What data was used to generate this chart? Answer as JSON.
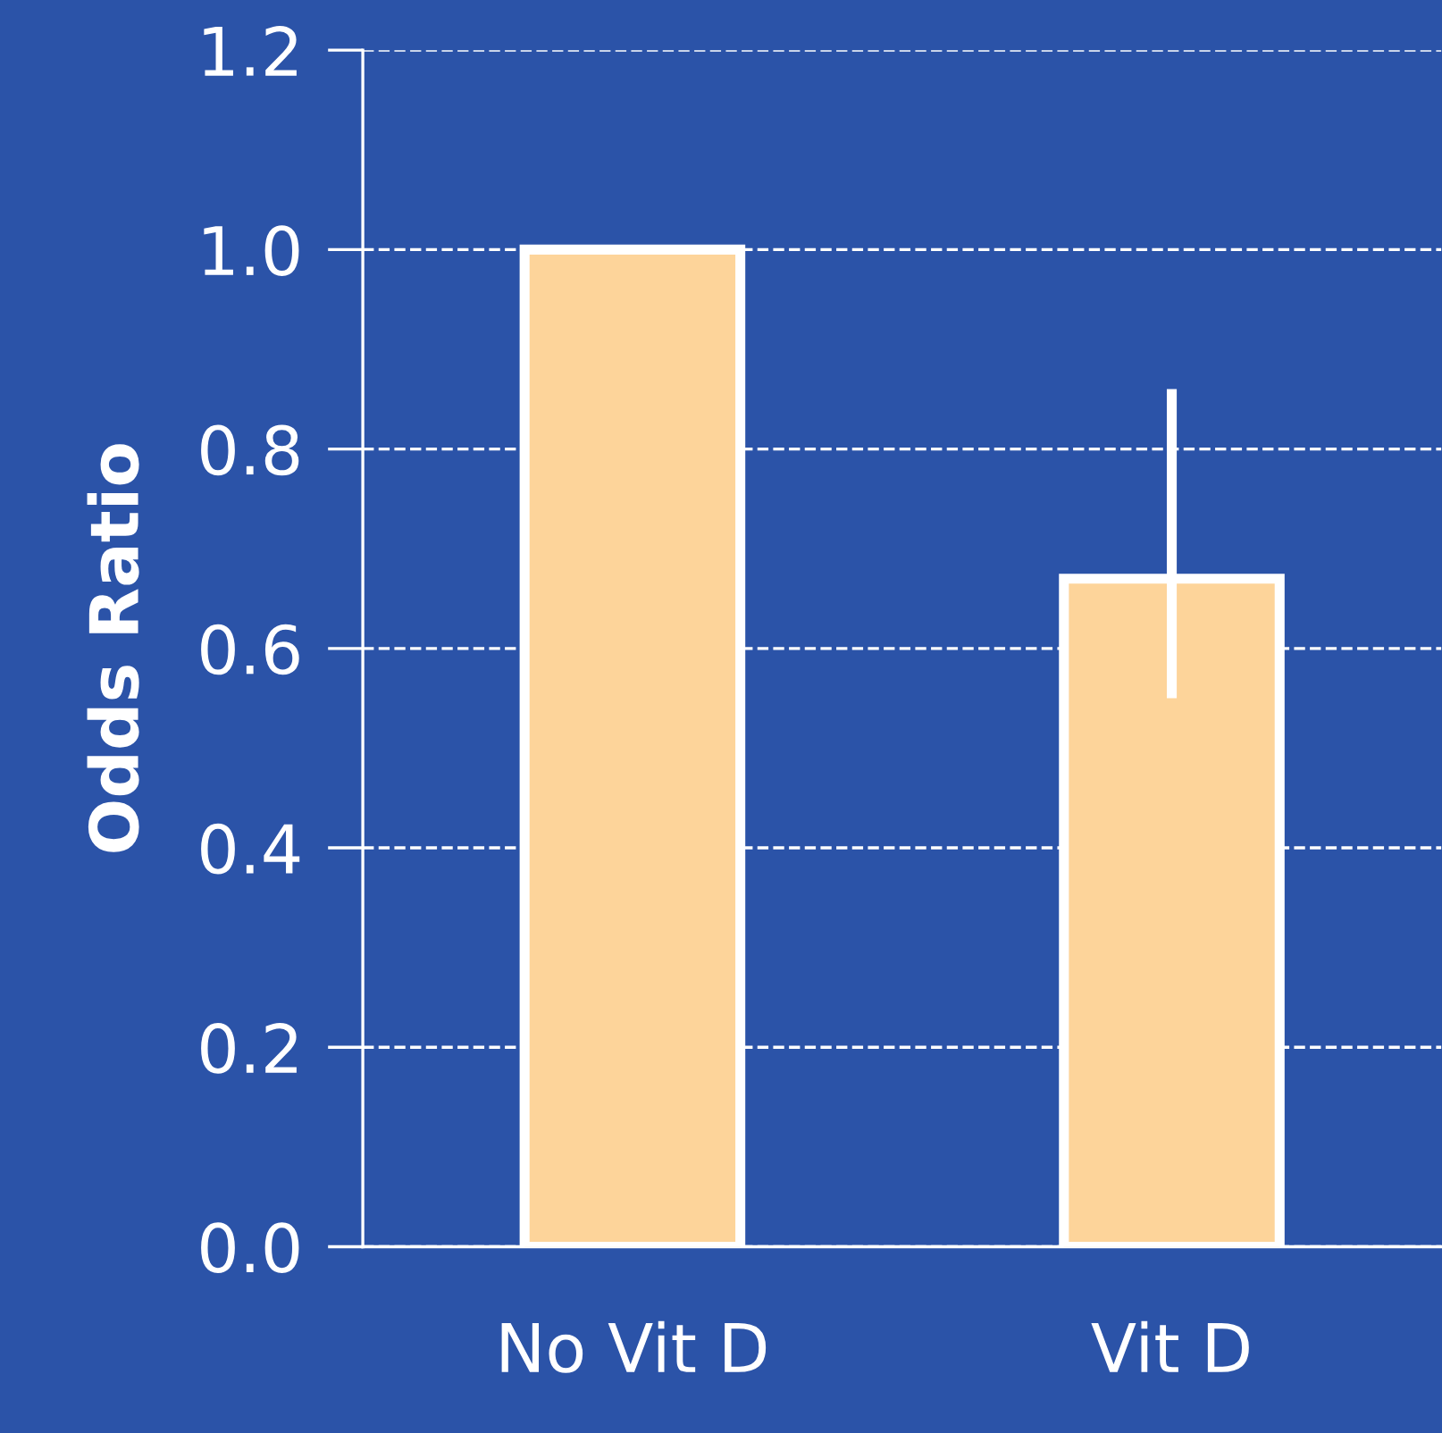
{
  "chart_data": {
    "type": "bar",
    "ylabel": "Odds Ratio",
    "categories": [
      "No Vit D",
      "Vit D"
    ],
    "values": [
      1.0,
      0.67
    ],
    "errors": [
      null,
      [
        0.55,
        0.86
      ]
    ],
    "color": "#fdd49a",
    "ylim": [
      0,
      1.2
    ],
    "yticks": [
      {
        "value": 0,
        "label": "0.0"
      },
      {
        "value": 0.2,
        "label": "0.2"
      },
      {
        "value": 0.4,
        "label": "0.4"
      },
      {
        "value": 0.6,
        "label": "0.6"
      },
      {
        "value": 0.8,
        "label": "0.8"
      },
      {
        "value": 1.0,
        "label": "1.0"
      },
      {
        "value": 1.2,
        "label": "1.2"
      }
    ],
    "grid": "y",
    "line_style": "dashed"
  }
}
